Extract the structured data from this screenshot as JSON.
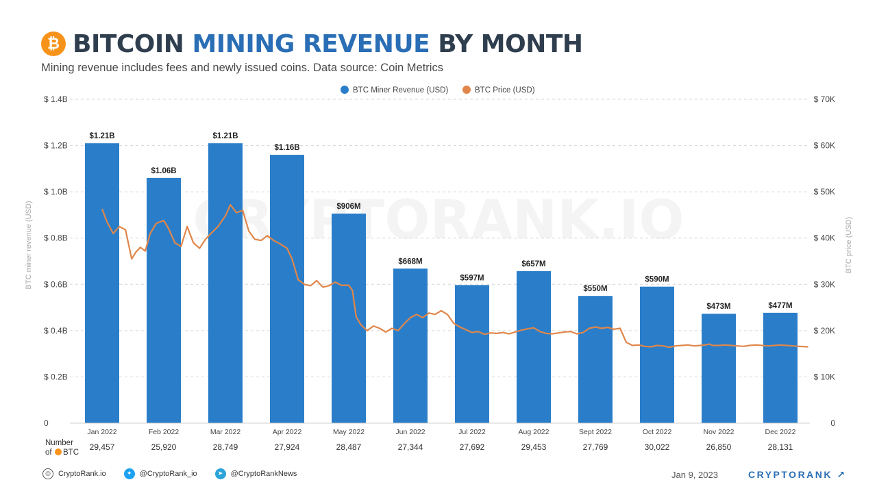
{
  "header": {
    "logo_glyph": "₿",
    "title_part1": "BITCOIN",
    "title_part2": "MINING REVENUE",
    "title_part3": "BY MONTH",
    "subtitle": "Mining revenue includes fees and newly issued coins. Data source: Coin Metrics"
  },
  "watermark": "CRYPTORANK.IO",
  "colors": {
    "bar": "#2a7ec9",
    "price_line": "#e0864a",
    "grid": "#d6d6d6",
    "title_dark": "#2f3e4e",
    "title_accent": "#2a6eb5"
  },
  "chart_data": {
    "type": "bar",
    "categories": [
      "Jan 2022",
      "Feb 2022",
      "Mar 2022",
      "Apr 2022",
      "May 2022",
      "Jun 2022",
      "Jul 2022",
      "Aug 2022",
      "Sept 2022",
      "Oct 2022",
      "Nov 2022",
      "Dec 2022"
    ],
    "series": [
      {
        "name": "BTC Miner Revenue (USD)",
        "axis": "left",
        "values": [
          1210000000,
          1060000000,
          1210000000,
          1160000000,
          906000000,
          668000000,
          597000000,
          657000000,
          550000000,
          590000000,
          473000000,
          477000000
        ],
        "labels": [
          "$1.21B",
          "$1.06B",
          "$1.21B",
          "$1.16B",
          "$906M",
          "$668M",
          "$597M",
          "$657M",
          "$550M",
          "$590M",
          "$473M",
          "$477M"
        ]
      },
      {
        "name": "BTC Price (USD)",
        "type": "line",
        "axis": "right",
        "x": [
          0.0,
          0.08,
          0.18,
          0.28,
          0.38,
          0.48,
          0.55,
          0.62,
          0.7,
          0.78,
          0.88,
          1.0,
          1.08,
          1.18,
          1.28,
          1.38,
          1.48,
          1.58,
          1.68,
          1.78,
          1.88,
          2.0,
          2.08,
          2.18,
          2.28,
          2.38,
          2.48,
          2.58,
          2.68,
          2.78,
          2.88,
          3.0,
          3.08,
          3.18,
          3.28,
          3.38,
          3.48,
          3.58,
          3.68,
          3.78,
          3.88,
          4.0,
          4.06,
          4.12,
          4.2,
          4.3,
          4.4,
          4.5,
          4.6,
          4.7,
          4.8,
          4.9,
          5.0,
          5.1,
          5.2,
          5.3,
          5.4,
          5.5,
          5.6,
          5.7,
          5.8,
          5.9,
          6.0,
          6.1,
          6.2,
          6.3,
          6.4,
          6.5,
          6.6,
          6.7,
          6.8,
          6.9,
          7.0,
          7.1,
          7.2,
          7.3,
          7.4,
          7.5,
          7.6,
          7.7,
          7.8,
          7.9,
          8.0,
          8.1,
          8.2,
          8.3,
          8.4,
          8.5,
          8.6,
          8.7,
          8.8,
          8.9,
          9.0,
          9.1,
          9.2,
          9.3,
          9.4,
          9.5,
          9.6,
          9.7,
          9.78,
          9.85,
          9.9,
          10.0,
          10.1,
          10.2,
          10.3,
          10.4,
          10.5,
          10.6,
          10.7,
          10.8,
          10.9,
          11.0,
          11.1,
          11.2,
          11.3,
          11.45
        ],
        "values": [
          46300,
          43500,
          41000,
          42500,
          41800,
          35500,
          37000,
          38000,
          37200,
          41000,
          43200,
          43800,
          42000,
          39000,
          38200,
          42500,
          39000,
          37800,
          39800,
          41200,
          42500,
          44800,
          47200,
          45500,
          46000,
          41500,
          39700,
          39500,
          40500,
          39500,
          38800,
          37800,
          35500,
          31000,
          30000,
          29700,
          30800,
          29400,
          29700,
          30500,
          29800,
          29800,
          28700,
          23000,
          21200,
          20000,
          21000,
          20500,
          19700,
          20500,
          20000,
          21500,
          22800,
          23500,
          22800,
          23800,
          23500,
          24300,
          23500,
          21600,
          20800,
          20200,
          19600,
          19800,
          19200,
          19500,
          19400,
          19600,
          19300,
          19700,
          20100,
          20400,
          20600,
          19800,
          19400,
          19300,
          19500,
          19700,
          19800,
          19300,
          19600,
          20500,
          20800,
          20500,
          20700,
          20300,
          20500,
          17500,
          16800,
          16900,
          16600,
          16500,
          16800,
          16700,
          16400,
          16700,
          16800,
          16900,
          16700,
          16800,
          16900,
          17100,
          16800,
          16800,
          16900,
          16800,
          16700,
          16600,
          16800,
          16900,
          16800,
          16700,
          16800,
          16900,
          16800,
          16700,
          16600,
          16500
        ]
      }
    ],
    "number_of_btc": [
      "29,457",
      "25,920",
      "28,749",
      "27,924",
      "28,487",
      "27,344",
      "27,692",
      "29,453",
      "27,769",
      "30,022",
      "26,850",
      "28,131"
    ],
    "number_of_btc_label_line1": "Number",
    "number_of_btc_label_line2": "of",
    "number_of_btc_label_line2b": "BTC",
    "left_axis": {
      "label": "BTC miner revenue (USD)",
      "ticks": [
        0,
        200000000,
        400000000,
        600000000,
        800000000,
        1000000000,
        1200000000,
        1400000000
      ],
      "tick_labels": [
        "0",
        "$ 0.2B",
        "$ 0.4B",
        "$ 0.6B",
        "$ 0.8B",
        "$ 1.0B",
        "$ 1.2B",
        "$ 1.4B"
      ],
      "ylim": [
        0,
        1400000000
      ]
    },
    "right_axis": {
      "label": "BTC price (USD)",
      "ticks": [
        0,
        10000,
        20000,
        30000,
        40000,
        50000,
        60000,
        70000
      ],
      "tick_labels": [
        "0",
        "$ 10K",
        "$ 20K",
        "$ 30K",
        "$ 40K",
        "$ 50K",
        "$ 60K",
        "$ 70K"
      ],
      "ylim": [
        0,
        70000
      ]
    },
    "legend_position": "top-center",
    "grid": true
  },
  "footer": {
    "website": "CryptoRank.io",
    "twitter": "@CryptoRank_io",
    "telegram": "@CryptoRankNews",
    "globe_icon": "globe-icon",
    "twitter_icon": "twitter-icon",
    "telegram_icon": "telegram-icon"
  },
  "date": "Jan 9, 2023",
  "brand": "CRYPTORANK",
  "brand_arrow": "↗"
}
